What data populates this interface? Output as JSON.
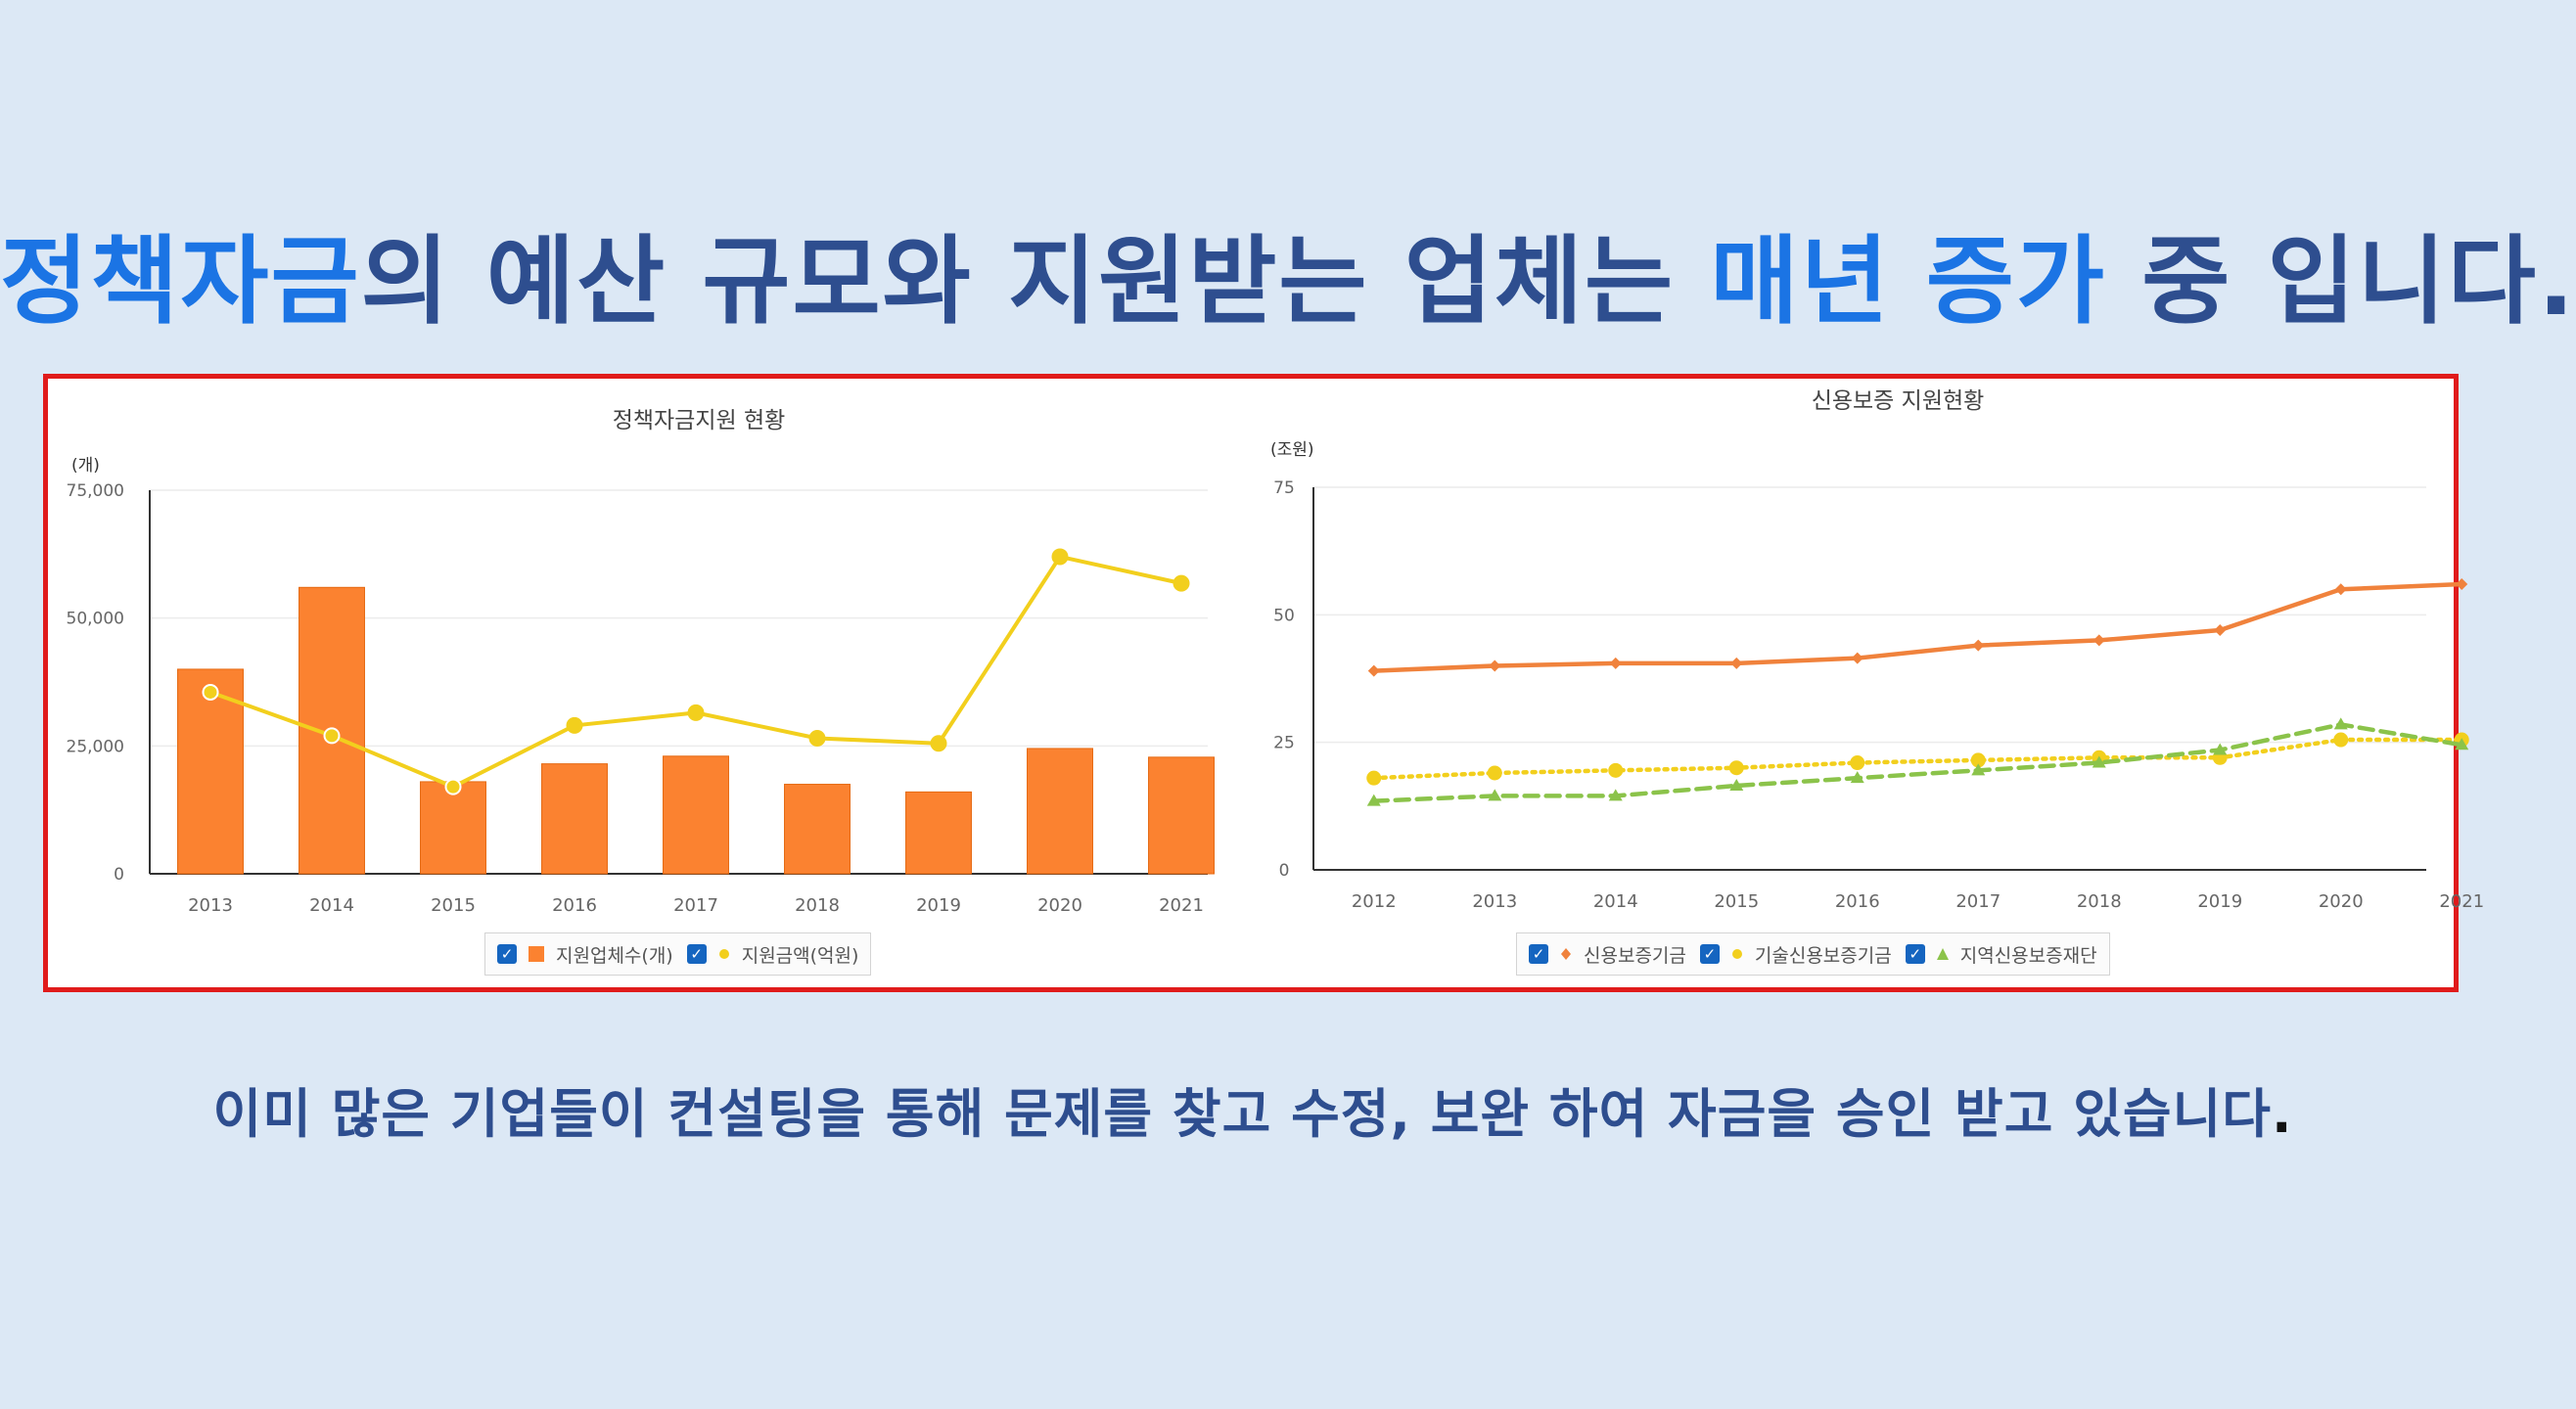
{
  "headline": {
    "part1": "정책자금",
    "part2": "의 예산 규모와 지원받는 업체는 ",
    "part3": "매년 증가",
    "part4": " 중 입니다."
  },
  "footer": {
    "text": "이미 많은 기업들이 컨설팅을 통해 문제를 찾고 수정, 보완 하여 자금을 승인 받고 있습니다",
    "period": "."
  },
  "colors": {
    "bar": "#fb8230",
    "line_yellow": "#f2cf1d",
    "line_orange": "#f0823c",
    "line_green": "#8bc34a",
    "frame": "#e01b1b"
  },
  "chart_data": [
    {
      "type": "bar",
      "title": "정책자금지원 현황",
      "ylabel": "(개)",
      "ylim": [
        0,
        75000
      ],
      "yticks": [
        "0",
        "25,000",
        "50,000",
        "75,000"
      ],
      "categories": [
        "2013",
        "2014",
        "2015",
        "2016",
        "2017",
        "2018",
        "2019",
        "2020",
        "2021"
      ],
      "series": [
        {
          "name": "지원업체수(개)",
          "type": "bar",
          "values": [
            40000,
            56000,
            18000,
            21500,
            23000,
            17500,
            16000,
            24500,
            22800
          ]
        },
        {
          "name": "지원금액(억원)",
          "type": "line",
          "values": [
            35500,
            27000,
            17000,
            29000,
            31500,
            26500,
            25500,
            62000,
            56800
          ]
        }
      ],
      "legend": "bottom",
      "grid": true
    },
    {
      "type": "line",
      "title": "신용보증 지원현황",
      "ylabel": "(조원)",
      "ylim": [
        0,
        75
      ],
      "yticks": [
        "0",
        "25",
        "50",
        "75"
      ],
      "categories": [
        "2012",
        "2013",
        "2014",
        "2015",
        "2016",
        "2017",
        "2018",
        "2019",
        "2020",
        "2021"
      ],
      "series": [
        {
          "name": "신용보증기금",
          "values": [
            39,
            40,
            40.5,
            40.5,
            41.5,
            44,
            45,
            47,
            55,
            56
          ]
        },
        {
          "name": "기술신용보증기금",
          "values": [
            18,
            19,
            19.5,
            20,
            21,
            21.5,
            22,
            22,
            25.5,
            25.5
          ]
        },
        {
          "name": "지역신용보증재단",
          "values": [
            13.5,
            14.5,
            14.5,
            16.5,
            18,
            19.5,
            21,
            23.5,
            28.5,
            24.5
          ]
        }
      ],
      "legend": "bottom",
      "grid": true
    }
  ]
}
